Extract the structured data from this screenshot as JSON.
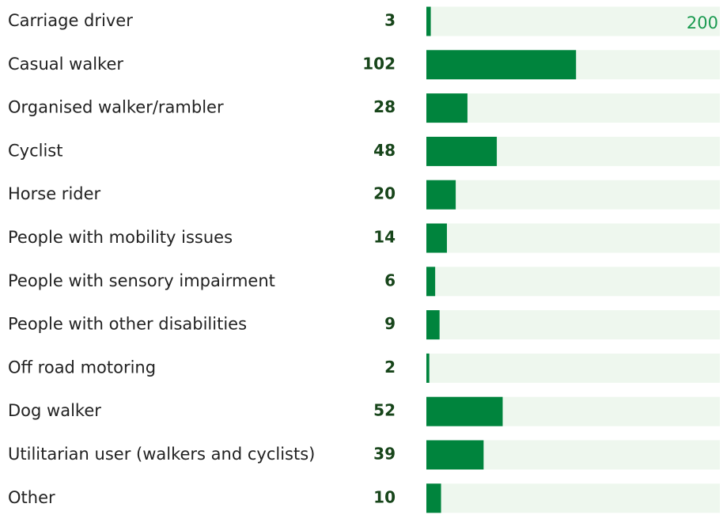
{
  "chart_data": {
    "type": "bar",
    "orientation": "horizontal",
    "categories": [
      "Carriage driver",
      "Casual walker",
      "Organised walker/rambler",
      "Cyclist",
      "Horse rider",
      "People with mobility issues",
      "People with sensory impairment",
      "People with other disabilities",
      "Off road motoring",
      "Dog walker",
      "Utilitarian user (walkers and cyclists)",
      "Other"
    ],
    "values": [
      3,
      102,
      28,
      48,
      20,
      14,
      6,
      9,
      2,
      52,
      39,
      10
    ],
    "color": "#00843d",
    "track_color": "#eef7ee",
    "xlim": [
      0,
      200
    ],
    "xticks": [
      200
    ]
  }
}
